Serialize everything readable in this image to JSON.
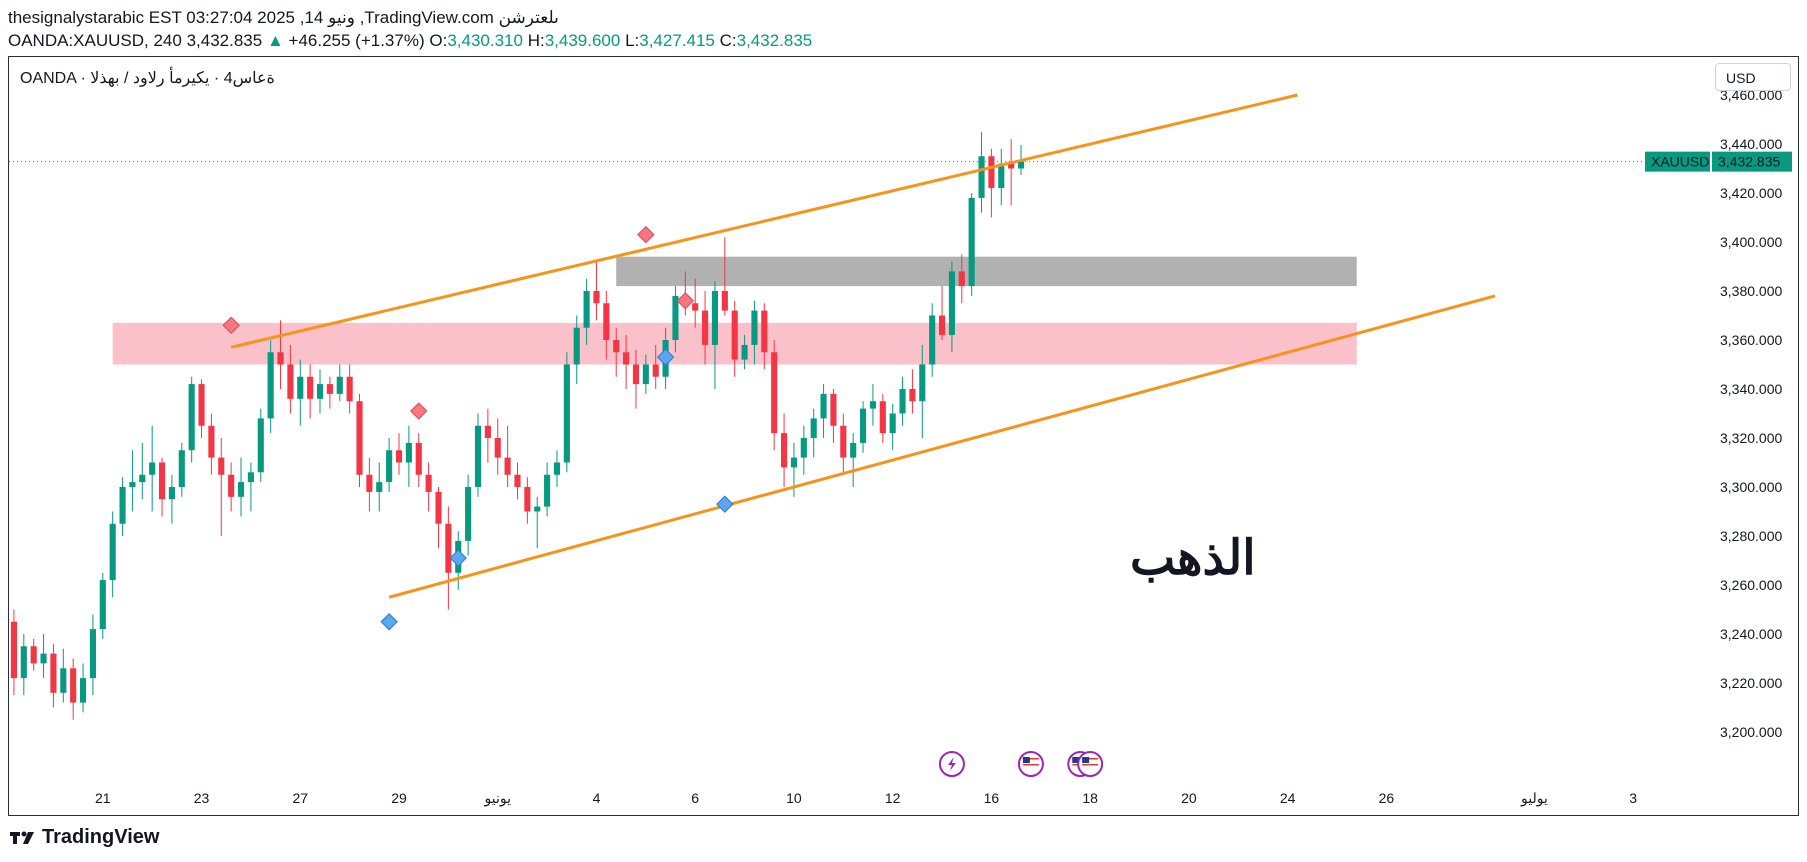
{
  "header": {
    "line1": "thesignalystarabic EST 03:27:04 2025 ,14 ونيو‎ ,TradingView.com ىلعترشن",
    "symbol": "OANDA:XAUUSD, 240",
    "last": "3,432.835",
    "change": "+46.255 (+1.37%)",
    "o_label": "O:",
    "o": "3,430.310",
    "h_label": "H:",
    "h": "3,439.600",
    "l_label": "L:",
    "l": "3,427.415",
    "c_label": "C:",
    "c": "3,432.835"
  },
  "legend": "OANDA · ةعاس4 · يكيرمأ رلاود / بهذلا",
  "currency_button": "USD",
  "price_badge": {
    "symbol": "XAUUSD",
    "value": "3,432.835"
  },
  "chart_title": "الذهب",
  "footer_brand": "TradingView",
  "colors": {
    "up": "#089981",
    "down": "#f23645",
    "trendline": "#f7931a",
    "pink_zone": "#f9a7b4",
    "gray_zone": "#9e9e9e",
    "badge": "#089981"
  },
  "chart_data": {
    "type": "candlestick",
    "title": "OANDA:XAUUSD 4H",
    "ylim": [
      3180,
      3460
    ],
    "y_ticks": [
      3200,
      3220,
      3240,
      3260,
      3280,
      3300,
      3320,
      3340,
      3360,
      3380,
      3400,
      3420,
      3440,
      3460
    ],
    "y_tick_labels": [
      "3,200.000",
      "3,220.000",
      "3,240.000",
      "3,260.000",
      "3,280.000",
      "3,300.000",
      "3,320.000",
      "3,340.000",
      "3,360.000",
      "3,380.000",
      "3,400.000",
      "3,420.000",
      "3,440.000",
      "3,460.000"
    ],
    "x_ticks": [
      {
        "label": "21",
        "bar": 9
      },
      {
        "label": "23",
        "bar": 19
      },
      {
        "label": "27",
        "bar": 29
      },
      {
        "label": "29",
        "bar": 39
      },
      {
        "label": "يونيو",
        "bar": 49
      },
      {
        "label": "4",
        "bar": 59
      },
      {
        "label": "6",
        "bar": 69
      },
      {
        "label": "10",
        "bar": 79
      },
      {
        "label": "12",
        "bar": 89
      },
      {
        "label": "16",
        "bar": 99
      },
      {
        "label": "18",
        "bar": 109
      },
      {
        "label": "20",
        "bar": 119
      },
      {
        "label": "24",
        "bar": 129
      },
      {
        "label": "26",
        "bar": 139
      },
      {
        "label": "يوليو",
        "bar": 154
      },
      {
        "label": "3",
        "bar": 164
      }
    ],
    "bar_span": 166,
    "candles": [
      [
        3245,
        3250,
        3215,
        3222
      ],
      [
        3222,
        3240,
        3215,
        3235
      ],
      [
        3235,
        3238,
        3225,
        3228
      ],
      [
        3228,
        3240,
        3222,
        3232
      ],
      [
        3232,
        3236,
        3210,
        3216
      ],
      [
        3216,
        3234,
        3212,
        3226
      ],
      [
        3226,
        3230,
        3205,
        3212
      ],
      [
        3212,
        3228,
        3208,
        3222
      ],
      [
        3222,
        3248,
        3215,
        3242
      ],
      [
        3242,
        3265,
        3238,
        3262
      ],
      [
        3262,
        3290,
        3255,
        3285
      ],
      [
        3285,
        3304,
        3280,
        3300
      ],
      [
        3300,
        3315,
        3290,
        3302
      ],
      [
        3302,
        3318,
        3295,
        3305
      ],
      [
        3305,
        3325,
        3290,
        3310
      ],
      [
        3310,
        3312,
        3288,
        3295
      ],
      [
        3295,
        3305,
        3285,
        3300
      ],
      [
        3300,
        3318,
        3296,
        3315
      ],
      [
        3315,
        3345,
        3310,
        3342
      ],
      [
        3342,
        3344,
        3320,
        3325
      ],
      [
        3325,
        3330,
        3305,
        3312
      ],
      [
        3312,
        3320,
        3280,
        3305
      ],
      [
        3305,
        3310,
        3290,
        3296
      ],
      [
        3296,
        3312,
        3288,
        3302
      ],
      [
        3302,
        3310,
        3290,
        3306
      ],
      [
        3306,
        3332,
        3302,
        3328
      ],
      [
        3328,
        3360,
        3322,
        3355
      ],
      [
        3355,
        3368,
        3340,
        3350
      ],
      [
        3350,
        3358,
        3330,
        3336
      ],
      [
        3336,
        3352,
        3325,
        3345
      ],
      [
        3345,
        3350,
        3328,
        3336
      ],
      [
        3336,
        3348,
        3330,
        3342
      ],
      [
        3342,
        3345,
        3332,
        3338
      ],
      [
        3338,
        3350,
        3335,
        3345
      ],
      [
        3345,
        3350,
        3330,
        3335
      ],
      [
        3335,
        3338,
        3300,
        3305
      ],
      [
        3305,
        3312,
        3290,
        3298
      ],
      [
        3298,
        3310,
        3290,
        3302
      ],
      [
        3302,
        3320,
        3298,
        3315
      ],
      [
        3315,
        3322,
        3305,
        3310
      ],
      [
        3310,
        3325,
        3300,
        3318
      ],
      [
        3318,
        3322,
        3300,
        3305
      ],
      [
        3305,
        3310,
        3290,
        3298
      ],
      [
        3298,
        3300,
        3275,
        3285
      ],
      [
        3285,
        3292,
        3250,
        3265
      ],
      [
        3265,
        3282,
        3258,
        3278
      ],
      [
        3278,
        3305,
        3272,
        3300
      ],
      [
        3300,
        3330,
        3296,
        3325
      ],
      [
        3325,
        3332,
        3310,
        3320
      ],
      [
        3320,
        3328,
        3305,
        3312
      ],
      [
        3312,
        3325,
        3300,
        3305
      ],
      [
        3305,
        3310,
        3295,
        3300
      ],
      [
        3300,
        3304,
        3285,
        3290
      ],
      [
        3290,
        3296,
        3275,
        3292
      ],
      [
        3292,
        3310,
        3288,
        3305
      ],
      [
        3305,
        3315,
        3300,
        3310
      ],
      [
        3310,
        3355,
        3306,
        3350
      ],
      [
        3350,
        3370,
        3342,
        3365
      ],
      [
        3365,
        3385,
        3358,
        3380
      ],
      [
        3380,
        3392,
        3368,
        3375
      ],
      [
        3375,
        3380,
        3352,
        3360
      ],
      [
        3360,
        3365,
        3345,
        3355
      ],
      [
        3355,
        3362,
        3340,
        3350
      ],
      [
        3350,
        3356,
        3332,
        3342
      ],
      [
        3342,
        3354,
        3338,
        3350
      ],
      [
        3350,
        3358,
        3340,
        3345
      ],
      [
        3345,
        3365,
        3340,
        3360
      ],
      [
        3360,
        3382,
        3355,
        3378
      ],
      [
        3378,
        3388,
        3370,
        3375
      ],
      [
        3375,
        3385,
        3365,
        3372
      ],
      [
        3372,
        3380,
        3350,
        3358
      ],
      [
        3358,
        3384,
        3340,
        3380
      ],
      [
        3380,
        3402,
        3370,
        3372
      ],
      [
        3372,
        3376,
        3345,
        3352
      ],
      [
        3352,
        3362,
        3348,
        3358
      ],
      [
        3358,
        3376,
        3350,
        3372
      ],
      [
        3372,
        3375,
        3348,
        3355
      ],
      [
        3355,
        3360,
        3315,
        3322
      ],
      [
        3322,
        3330,
        3300,
        3308
      ],
      [
        3308,
        3318,
        3296,
        3312
      ],
      [
        3312,
        3325,
        3305,
        3320
      ],
      [
        3320,
        3332,
        3312,
        3328
      ],
      [
        3328,
        3342,
        3320,
        3338
      ],
      [
        3338,
        3340,
        3318,
        3325
      ],
      [
        3325,
        3330,
        3305,
        3312
      ],
      [
        3312,
        3322,
        3300,
        3318
      ],
      [
        3318,
        3335,
        3314,
        3332
      ],
      [
        3332,
        3342,
        3325,
        3335
      ],
      [
        3335,
        3338,
        3318,
        3322
      ],
      [
        3322,
        3334,
        3315,
        3330
      ],
      [
        3330,
        3345,
        3325,
        3340
      ],
      [
        3340,
        3348,
        3330,
        3335
      ],
      [
        3335,
        3358,
        3320,
        3350
      ],
      [
        3350,
        3375,
        3345,
        3370
      ],
      [
        3370,
        3382,
        3360,
        3362
      ],
      [
        3362,
        3392,
        3355,
        3388
      ],
      [
        3388,
        3395,
        3375,
        3382
      ],
      [
        3382,
        3420,
        3378,
        3418
      ],
      [
        3418,
        3445,
        3412,
        3435
      ],
      [
        3435,
        3438,
        3410,
        3422
      ],
      [
        3422,
        3438,
        3415,
        3432
      ],
      [
        3432,
        3442,
        3415,
        3430
      ],
      [
        3430,
        3439.6,
        3427.4,
        3432.8
      ]
    ],
    "channel_upper": {
      "from": {
        "bar": 22,
        "price": 3357
      },
      "to": {
        "bar": 130,
        "price": 3460
      }
    },
    "channel_lower": {
      "from": {
        "bar": 38,
        "price": 3255
      },
      "to": {
        "bar": 150,
        "price": 3378
      }
    },
    "zones": [
      {
        "name": "supply",
        "from_bar": 10,
        "to_bar": 136,
        "low": 3350,
        "high": 3367,
        "color": "#f9a7b4"
      },
      {
        "name": "resistance",
        "from_bar": 61,
        "to_bar": 136,
        "low": 3382,
        "high": 3394,
        "color": "#9e9e9e"
      }
    ],
    "markers_high": [
      {
        "bar": 22,
        "price": 3366
      },
      {
        "bar": 41,
        "price": 3331
      },
      {
        "bar": 64,
        "price": 3403
      },
      {
        "bar": 68,
        "price": 3376
      }
    ],
    "markers_low": [
      {
        "bar": 38,
        "price": 3245
      },
      {
        "bar": 45,
        "price": 3271
      },
      {
        "bar": 66,
        "price": 3353
      },
      {
        "bar": 72,
        "price": 3293
      }
    ],
    "events": [
      {
        "bar": 95,
        "kind": "lightning"
      },
      {
        "bar": 103,
        "kind": "flag"
      },
      {
        "bar": 108,
        "kind": "flag"
      },
      {
        "bar": 109,
        "kind": "flag"
      }
    ]
  }
}
